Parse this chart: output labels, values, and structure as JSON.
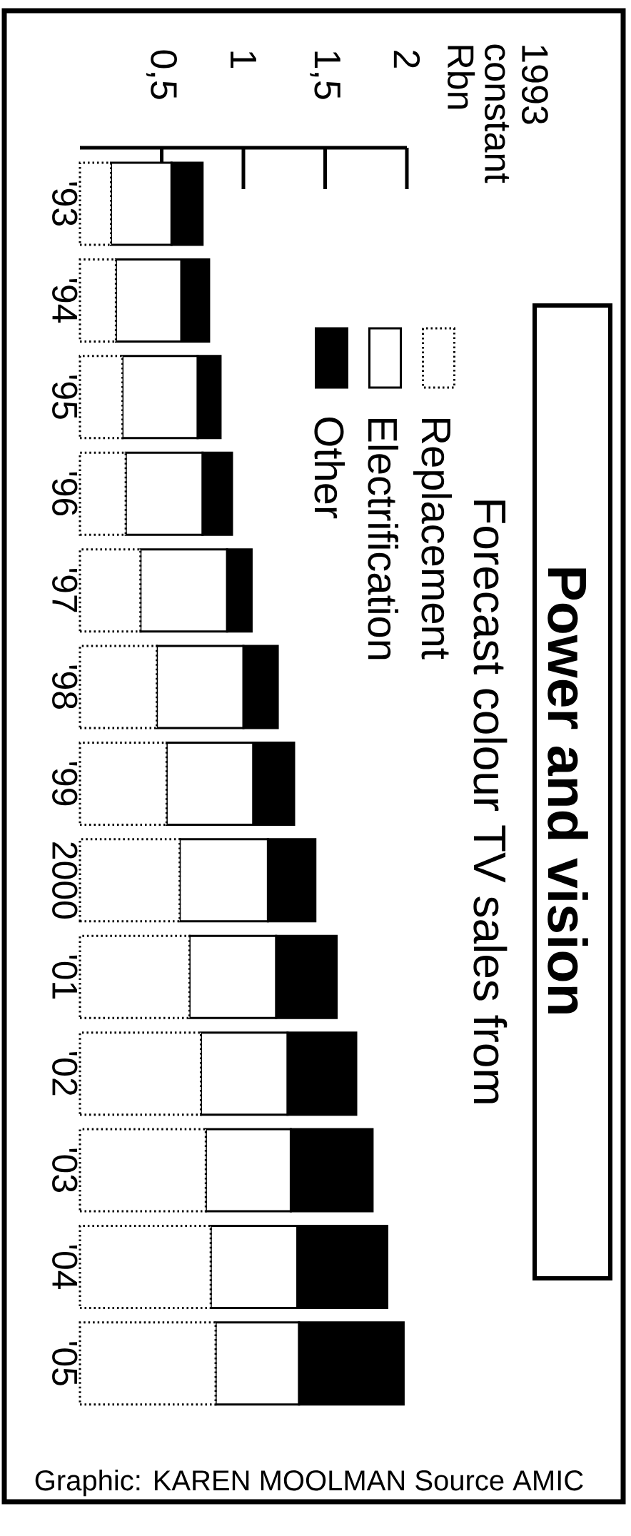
{
  "chart_data": {
    "type": "bar",
    "orientation": "horizontal",
    "stacked": true,
    "title": "Power and vision",
    "subtitle": "Forecast colour TV sales from",
    "ylabel": "1993 constant Rbn",
    "categories": [
      "'93",
      "'94",
      "'95",
      "'96",
      "'97",
      "'98",
      "'99",
      "2000",
      "'01",
      "'02",
      "'03",
      "'04",
      "'05"
    ],
    "series": [
      {
        "name": "Replacement",
        "color": "#ffffff",
        "line_style": "dotted",
        "values": [
          0.19,
          0.22,
          0.26,
          0.28,
          0.37,
          0.47,
          0.53,
          0.61,
          0.67,
          0.74,
          0.77,
          0.8,
          0.83
        ]
      },
      {
        "name": "Electrification",
        "color": "#ffffff",
        "values": [
          0.37,
          0.4,
          0.46,
          0.47,
          0.53,
          0.53,
          0.53,
          0.54,
          0.53,
          0.53,
          0.52,
          0.53,
          0.51
        ]
      },
      {
        "name": "Other",
        "color": "#000000",
        "values": [
          0.19,
          0.17,
          0.14,
          0.18,
          0.15,
          0.21,
          0.25,
          0.29,
          0.37,
          0.42,
          0.5,
          0.55,
          0.64
        ]
      }
    ],
    "xlim": [
      0,
      2
    ],
    "xticks": [
      {
        "value": 0.5,
        "label": "0,5"
      },
      1,
      {
        "value": 1.5,
        "label": "1,5"
      },
      2
    ],
    "legend": "top right",
    "annotations": [
      "Graphic: KAREN MOOLMAN Source AMIC"
    ]
  }
}
